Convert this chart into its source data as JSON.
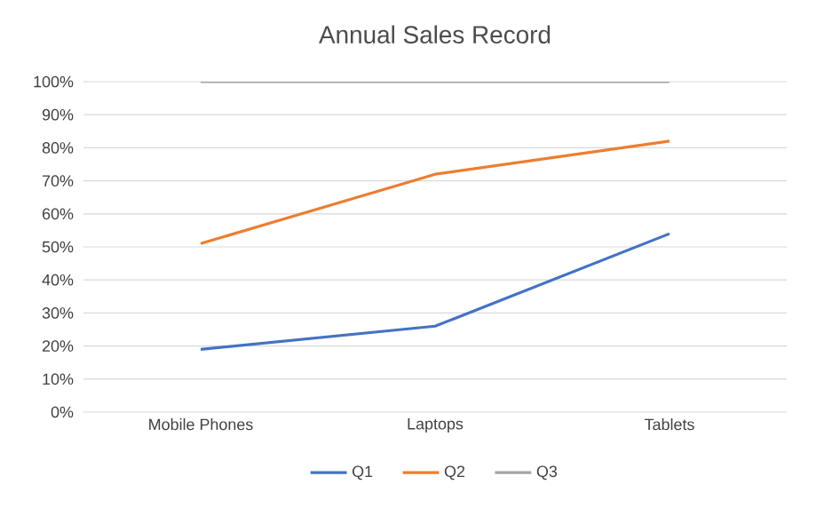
{
  "chart_data": {
    "type": "line",
    "title": "Annual Sales Record",
    "categories": [
      "Mobile Phones",
      "Laptops",
      "Tablets"
    ],
    "series": [
      {
        "name": "Q1",
        "color": "#4472c4",
        "values": [
          19,
          26,
          54
        ]
      },
      {
        "name": "Q2",
        "color": "#ed7d31",
        "values": [
          51,
          72,
          82
        ]
      },
      {
        "name": "Q3",
        "color": "#a5a5a5",
        "values": [
          100,
          100,
          100
        ]
      }
    ],
    "ylim": [
      0,
      100
    ],
    "yticks": [
      {
        "value": 0,
        "label": "0%"
      },
      {
        "value": 10,
        "label": "10%"
      },
      {
        "value": 20,
        "label": "20%"
      },
      {
        "value": 30,
        "label": "30%"
      },
      {
        "value": 40,
        "label": "40%"
      },
      {
        "value": 50,
        "label": "50%"
      },
      {
        "value": 60,
        "label": "60%"
      },
      {
        "value": 70,
        "label": "70%"
      },
      {
        "value": 80,
        "label": "80%"
      },
      {
        "value": 90,
        "label": "90%"
      },
      {
        "value": 100,
        "label": "100%"
      }
    ],
    "grid": "y",
    "legend": "bottom"
  }
}
